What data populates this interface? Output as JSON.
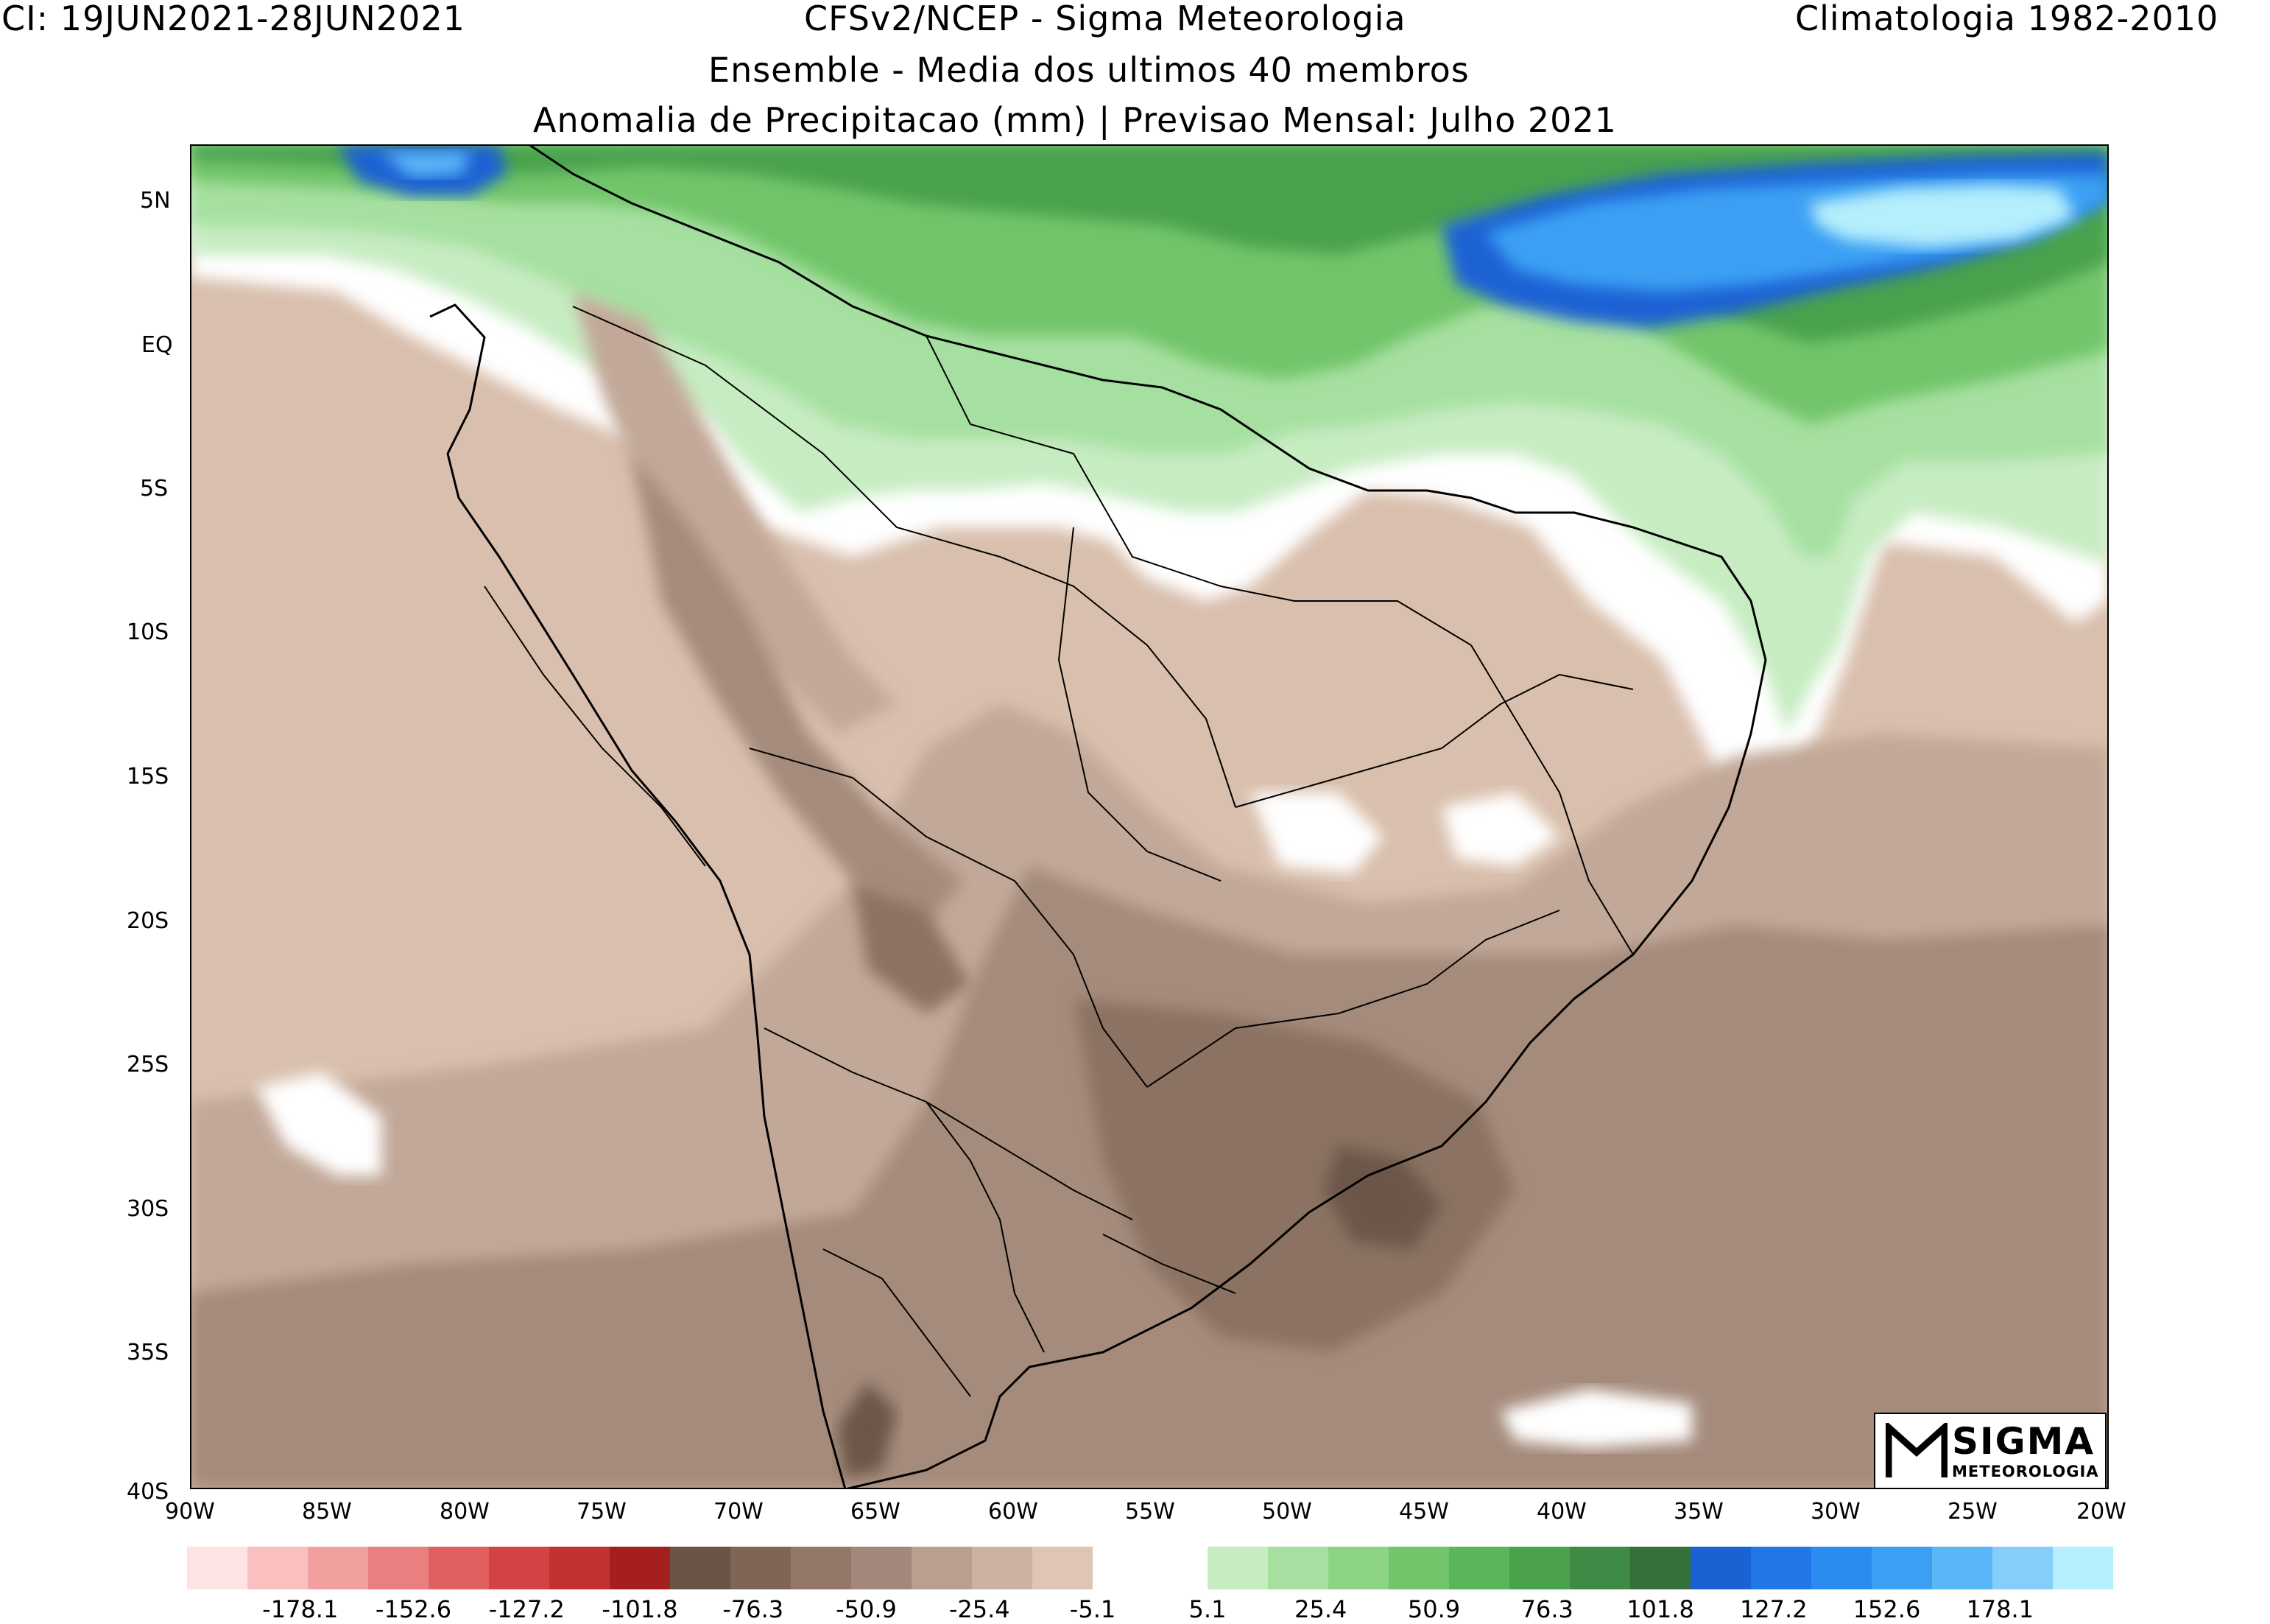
{
  "header": {
    "top_left": "CI: 19JUN2021-28JUN2021",
    "top_center": "CFSv2/NCEP - Sigma Meteorologia",
    "top_right": "Climatologia 1982-2010",
    "line2": "Ensemble - Media dos ultimos 40 membros",
    "line3": "Anomalia de Precipitacao (mm) | Previsao Mensal: Julho 2021"
  },
  "axes": {
    "lon_labels": [
      "90W",
      "85W",
      "80W",
      "75W",
      "70W",
      "65W",
      "60W",
      "55W",
      "50W",
      "45W",
      "40W",
      "35W",
      "30W",
      "25W",
      "20W"
    ],
    "lat_labels": [
      "5N",
      "EQ",
      "5S",
      "10S",
      "15S",
      "20S",
      "25S",
      "30S",
      "35S",
      "40S"
    ],
    "lon_range": [
      -90,
      -20
    ],
    "lat_range": [
      -40,
      7
    ]
  },
  "colorbar": {
    "dry_colors": [
      "#fde3e3",
      "#fac0c0",
      "#f29f9f",
      "#ea7f7f",
      "#e06060",
      "#d44343",
      "#c43131",
      "#a51f1f",
      "#6a5446",
      "#7e6555",
      "#937869",
      "#a2887a",
      "#b89f8f",
      "#cbb2a2",
      "#dfc5b4"
    ],
    "wet_colors": [
      "#c7ecc2",
      "#a6e0a0",
      "#8cd384",
      "#72c56b",
      "#5bb55a",
      "#4aa24d",
      "#3f8a44",
      "#356f39",
      "#1a62d4",
      "#2277e8",
      "#2b8cf0",
      "#3ba0f4",
      "#5bb6f7",
      "#85cdfa",
      "#b5eefc"
    ],
    "dry_labels": [
      "-178.1",
      "-152.6",
      "-127.2",
      "-101.8",
      "-76.3",
      "-50.9",
      "-25.4",
      "-5.1"
    ],
    "wet_labels": [
      "5.1",
      "25.4",
      "50.9",
      "76.3",
      "101.8",
      "127.2",
      "152.6",
      "178.1"
    ]
  },
  "field_colors": {
    "dry1": "#d9bfad",
    "dry2": "#c2a898",
    "dry3": "#a58b7b",
    "dry4": "#8b7262",
    "dry5": "#6c5648",
    "wet1": "#c7ecc2",
    "wet2": "#a6e0a0",
    "wet3": "#72c56b",
    "wet4": "#4aa24d",
    "wet5": "#356f39",
    "blue1": "#1a62d4",
    "blue2": "#3ba0f4",
    "blue3": "#b5eefc",
    "neutral": "#ffffff"
  },
  "logo": {
    "line1": "SIGMA",
    "line2": "METEOROLOGIA"
  }
}
